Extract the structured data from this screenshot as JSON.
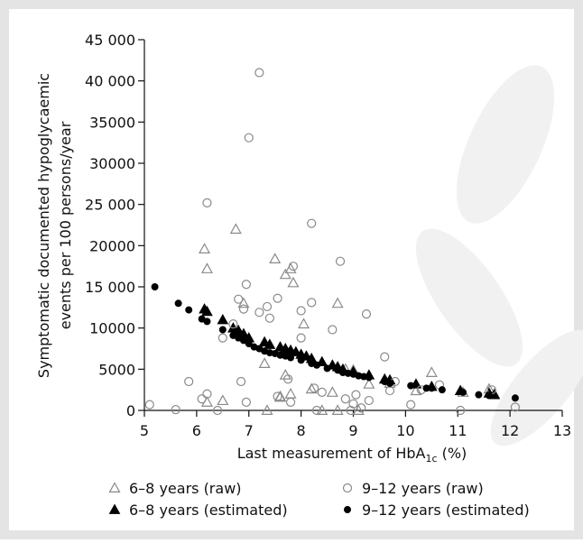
{
  "chart_data": {
    "type": "scatter",
    "y_label_lines": [
      "Symptomatic documented hypoglycaemic",
      "events per 100 persons/year"
    ],
    "x_label_parts": [
      "Last measurement of HbA",
      "1c",
      " (%)"
    ],
    "xlim": [
      5,
      13
    ],
    "xticks": [
      5,
      6,
      7,
      8,
      9,
      10,
      11,
      12,
      13
    ],
    "ylim": [
      0,
      45000
    ],
    "yticks": [
      0,
      5000,
      10000,
      {
        "value": 15000,
        "label": "15 000"
      },
      20000,
      {
        "value": 25000,
        "label": "25 000"
      },
      30000,
      35000,
      {
        "value": 40000,
        "label": "40 000"
      },
      {
        "value": 45000,
        "label": "45 000"
      }
    ],
    "grid": false,
    "series": [
      {
        "name": "6–8 years (raw)",
        "marker": "triangle",
        "filled": false,
        "color": "#8a8a8a",
        "x": [
          6.15,
          6.2,
          6.2,
          6.5,
          6.75,
          6.9,
          7.3,
          7.35,
          7.5,
          7.6,
          7.6,
          7.7,
          7.7,
          7.8,
          7.85,
          7.8,
          8.05,
          8.2,
          8.4,
          8.6,
          8.7,
          8.7,
          8.85,
          9.0,
          9.1,
          9.3,
          9.7,
          10.2,
          10.5,
          11.1,
          11.6,
          11.7
        ],
        "values": [
          19600,
          17200,
          1000,
          1200,
          22000,
          13000,
          5700,
          0,
          18400,
          1600,
          1700,
          4300,
          16500,
          17200,
          15500,
          2000,
          10500,
          2600,
          0,
          2200,
          13000,
          0,
          5000,
          4900,
          0,
          3200,
          3300,
          2400,
          4600,
          2200,
          2600,
          2000
        ]
      },
      {
        "name": "6–8 years (estimated)",
        "marker": "triangle",
        "filled": true,
        "color": "#000000",
        "x": [
          6.15,
          6.2,
          6.5,
          6.7,
          6.8,
          6.9,
          7.0,
          7.3,
          7.4,
          7.6,
          7.7,
          7.8,
          7.9,
          8.0,
          8.1,
          8.2,
          8.4,
          8.6,
          8.7,
          8.8,
          9.0,
          9.3,
          9.6,
          9.7,
          10.2,
          10.5,
          11.05,
          11.6,
          11.7
        ],
        "values": [
          12300,
          12000,
          11000,
          10000,
          9700,
          9300,
          8800,
          8300,
          8000,
          7700,
          7500,
          7300,
          7100,
          6800,
          6600,
          6300,
          5900,
          5500,
          5300,
          5000,
          4700,
          4300,
          3800,
          3700,
          3200,
          2900,
          2400,
          2100,
          1900
        ]
      },
      {
        "name": "9–12 years (raw)",
        "marker": "circle",
        "filled": false,
        "color": "#8a8a8a",
        "x": [
          5.1,
          5.6,
          5.85,
          6.1,
          6.2,
          6.2,
          6.4,
          6.5,
          6.7,
          6.8,
          6.9,
          6.95,
          6.85,
          6.95,
          7.0,
          7.2,
          7.2,
          7.35,
          7.4,
          7.55,
          7.55,
          7.75,
          7.8,
          7.85,
          8.0,
          8.0,
          8.2,
          8.2,
          8.25,
          8.3,
          8.4,
          8.6,
          8.75,
          8.85,
          8.95,
          9.0,
          9.05,
          9.15,
          9.25,
          9.3,
          9.6,
          9.7,
          9.8,
          10.1,
          10.3,
          10.65,
          11.05,
          11.65,
          12.1
        ],
        "values": [
          700,
          100,
          3500,
          1400,
          25200,
          2000,
          0,
          8800,
          10500,
          13500,
          12300,
          15300,
          3500,
          1000,
          33100,
          41000,
          11900,
          12600,
          11200,
          13600,
          1700,
          3800,
          1000,
          17500,
          12100,
          8800,
          22700,
          13100,
          2700,
          0,
          2200,
          9800,
          18100,
          1400,
          0,
          800,
          1900,
          300,
          11700,
          1200,
          6500,
          2400,
          3500,
          700,
          2500,
          3100,
          0,
          2500,
          400
        ]
      },
      {
        "name": "9–12 years (estimated)",
        "marker": "circle",
        "filled": true,
        "color": "#000000",
        "x": [
          5.2,
          5.65,
          5.85,
          6.1,
          6.2,
          6.5,
          6.7,
          6.8,
          6.9,
          7.0,
          7.1,
          7.2,
          7.3,
          7.4,
          7.5,
          7.6,
          7.7,
          7.8,
          8.0,
          8.2,
          8.3,
          8.5,
          8.7,
          8.8,
          8.9,
          9.0,
          9.1,
          9.2,
          9.3,
          9.6,
          9.7,
          10.1,
          10.4,
          10.5,
          10.7,
          11.1,
          11.4,
          11.6,
          12.1
        ],
        "values": [
          15000,
          13000,
          12200,
          11100,
          10800,
          9800,
          9100,
          8800,
          8500,
          8100,
          7700,
          7500,
          7200,
          7000,
          6900,
          6700,
          6600,
          6400,
          6100,
          5700,
          5500,
          5100,
          4900,
          4600,
          4500,
          4400,
          4200,
          4100,
          4000,
          3500,
          3300,
          3000,
          2700,
          2700,
          2500,
          2200,
          1900,
          1800,
          1500
        ]
      }
    ]
  }
}
